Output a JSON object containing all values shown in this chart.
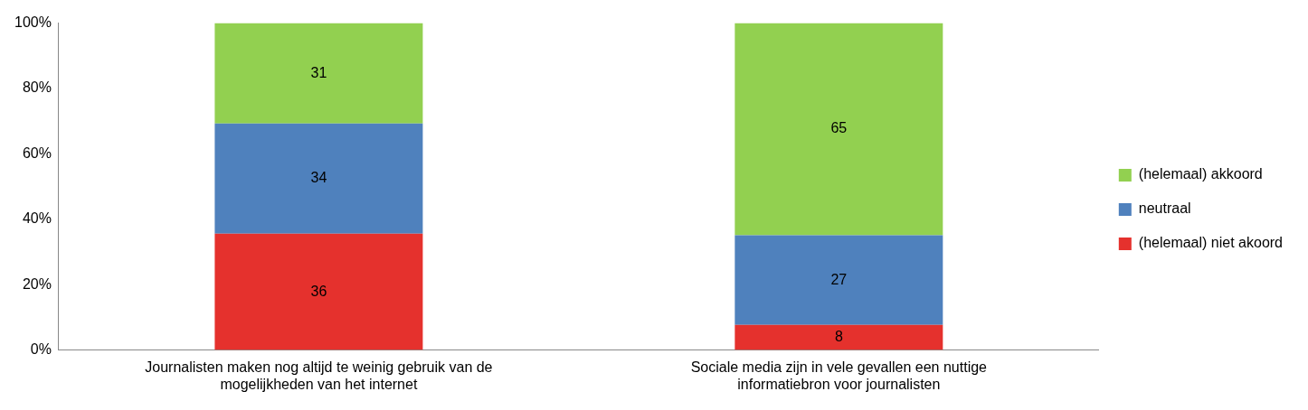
{
  "chart_data": {
    "type": "bar",
    "stacked": true,
    "categories": [
      "Journalisten maken nog altijd te weinig gebruik van de mogelijkheden van het internet",
      "Sociale media zijn in vele gevallen een nuttige informatiebron voor journalisten"
    ],
    "series": [
      {
        "name": "(helemaal) niet akoord",
        "color": "#e5312d",
        "values": [
          35.6,
          7.7
        ],
        "value_labels": [
          "36",
          "8"
        ]
      },
      {
        "name": "neutraal",
        "color": "#4f81bd",
        "values": [
          33.7,
          27.4
        ],
        "value_labels": [
          "34",
          "27"
        ]
      },
      {
        "name": "(helemaal) akkoord",
        "color": "#92d050",
        "values": [
          30.7,
          64.9
        ],
        "value_labels": [
          "31",
          "65"
        ]
      }
    ],
    "ylim": [
      0,
      100
    ],
    "yticks": [
      {
        "value": 0,
        "label": "0%"
      },
      {
        "value": 20,
        "label": "20%"
      },
      {
        "value": 40,
        "label": "40%"
      },
      {
        "value": 60,
        "label": "60%"
      },
      {
        "value": 80,
        "label": "80%"
      },
      {
        "value": 100,
        "label": "100%"
      }
    ],
    "grid": false,
    "legend": "right"
  }
}
